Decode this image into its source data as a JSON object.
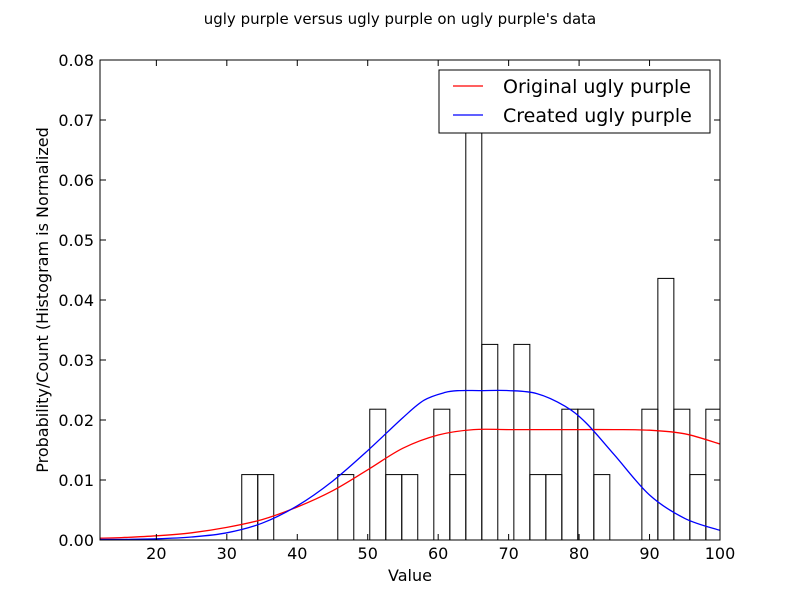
{
  "chart_data": {
    "type": "bar",
    "title": "ugly purple versus ugly purple on ugly purple's data",
    "xlabel": "Value",
    "ylabel": "Probability/Count (Histogram is Normalized",
    "xlim": [
      12,
      100
    ],
    "ylim": [
      0,
      0.08
    ],
    "xticks": [
      20,
      30,
      40,
      50,
      60,
      70,
      80,
      90,
      100
    ],
    "yticks": [
      0.0,
      0.01,
      0.02,
      0.03,
      0.04,
      0.05,
      0.06,
      0.07,
      0.08
    ],
    "ytick_labels": [
      "0.00",
      "0.01",
      "0.02",
      "0.03",
      "0.04",
      "0.05",
      "0.06",
      "0.07",
      "0.08"
    ],
    "grid": false,
    "legend_position": "top-right",
    "histogram": {
      "bin_width": 2.27,
      "bins": [
        {
          "x0": 32.12,
          "value": 0.0109
        },
        {
          "x0": 34.39,
          "value": 0.0109
        },
        {
          "x0": 45.75,
          "value": 0.0109
        },
        {
          "x0": 50.29,
          "value": 0.0218
        },
        {
          "x0": 52.56,
          "value": 0.0109
        },
        {
          "x0": 54.83,
          "value": 0.0109
        },
        {
          "x0": 59.38,
          "value": 0.0218
        },
        {
          "x0": 61.65,
          "value": 0.0109
        },
        {
          "x0": 63.92,
          "value": 0.0758
        },
        {
          "x0": 66.19,
          "value": 0.0326
        },
        {
          "x0": 70.74,
          "value": 0.0326
        },
        {
          "x0": 73.01,
          "value": 0.0109
        },
        {
          "x0": 75.28,
          "value": 0.0109
        },
        {
          "x0": 77.55,
          "value": 0.0218
        },
        {
          "x0": 79.82,
          "value": 0.0218
        },
        {
          "x0": 82.09,
          "value": 0.0109
        },
        {
          "x0": 88.91,
          "value": 0.0218
        },
        {
          "x0": 91.18,
          "value": 0.0436
        },
        {
          "x0": 93.45,
          "value": 0.0218
        },
        {
          "x0": 95.72,
          "value": 0.0109
        },
        {
          "x0": 97.99,
          "value": 0.0218
        }
      ]
    },
    "series": [
      {
        "name": "Original ugly purple",
        "color": "#ff0000",
        "x": [
          12,
          15,
          20,
          25,
          30,
          35,
          40,
          45,
          50,
          55,
          60,
          65,
          70,
          75,
          80,
          85,
          90,
          95,
          100
        ],
        "y": [
          0.0003,
          0.0004,
          0.0007,
          0.0012,
          0.0021,
          0.0034,
          0.0055,
          0.0082,
          0.0117,
          0.0153,
          0.0175,
          0.0184,
          0.0184,
          0.0184,
          0.0184,
          0.0184,
          0.0183,
          0.0177,
          0.016
        ]
      },
      {
        "name": "Created ugly purple",
        "color": "#0000ff",
        "x": [
          12,
          15,
          20,
          25,
          30,
          35,
          40,
          45,
          50,
          55,
          58,
          61,
          63,
          66,
          70,
          74,
          78,
          81,
          85,
          90,
          95,
          100
        ],
        "y": [
          0.0001,
          0.0001,
          0.0002,
          0.0005,
          0.0012,
          0.0028,
          0.0057,
          0.0098,
          0.0149,
          0.0204,
          0.0233,
          0.0246,
          0.0249,
          0.0249,
          0.0249,
          0.0244,
          0.0223,
          0.0195,
          0.0142,
          0.0075,
          0.0036,
          0.0016
        ]
      }
    ]
  }
}
